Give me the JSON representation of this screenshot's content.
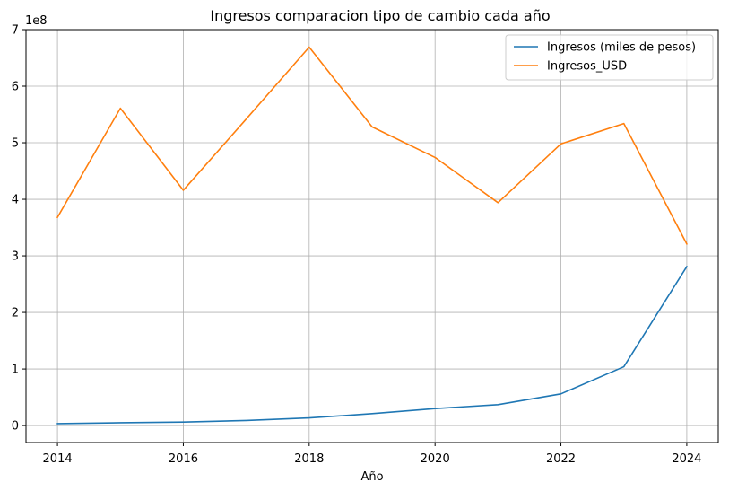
{
  "chart_data": {
    "type": "line",
    "title": "Ingresos comparacion tipo de cambio cada año",
    "xlabel": "Año",
    "ylabel": "",
    "y_offset_label": "1e8",
    "x": [
      2014,
      2015,
      2016,
      2017,
      2018,
      2019,
      2020,
      2021,
      2022,
      2023,
      2024
    ],
    "x_ticks": [
      2014,
      2016,
      2018,
      2020,
      2022,
      2024
    ],
    "x_tick_labels": [
      "2014",
      "2016",
      "2018",
      "2020",
      "2022",
      "2024"
    ],
    "xlim": [
      2013.5,
      2024.5
    ],
    "y_ticks": [
      0,
      100000000,
      200000000,
      300000000,
      400000000,
      500000000,
      600000000,
      700000000
    ],
    "y_tick_labels": [
      "0",
      "1",
      "2",
      "3",
      "4",
      "5",
      "6",
      "7"
    ],
    "ylim": [
      -30000000,
      700000000
    ],
    "grid": true,
    "legend_position": "top-right",
    "series": [
      {
        "name": "Ingresos (miles de pesos)",
        "color": "#1f77b4",
        "values": [
          3500000,
          5000000,
          6200000,
          9000000,
          13500000,
          21000000,
          30000000,
          37000000,
          56000000,
          104000000,
          281000000
        ]
      },
      {
        "name": "Ingresos_USD",
        "color": "#ff7f0e",
        "values": [
          368000000,
          561000000,
          416000000,
          542000000,
          669000000,
          528000000,
          474000000,
          394000000,
          498000000,
          534000000,
          321000000
        ]
      }
    ]
  }
}
